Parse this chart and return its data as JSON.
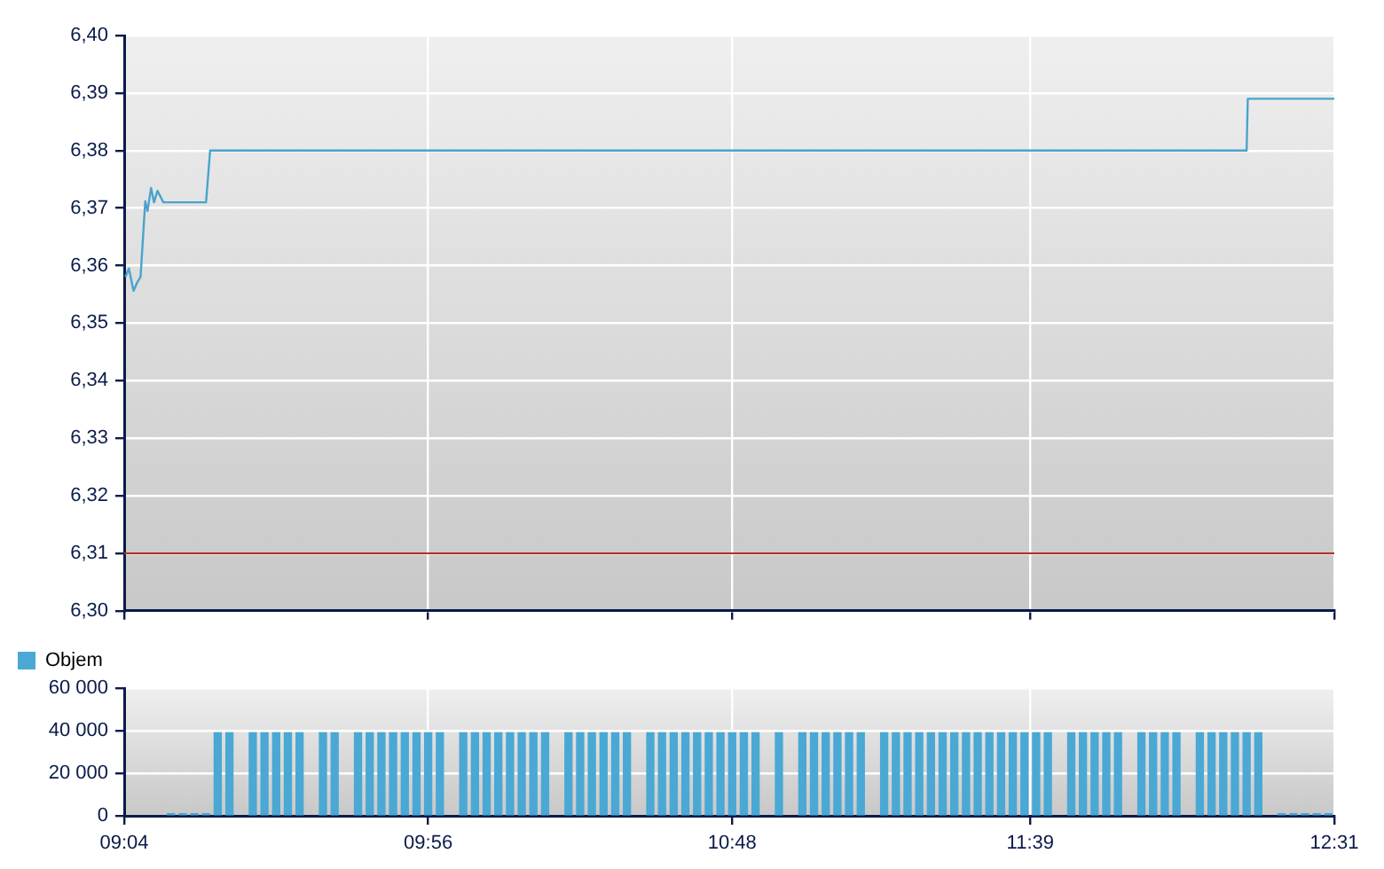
{
  "chart_data": [
    {
      "type": "line",
      "series": [
        {
          "color": "#4aa3cc",
          "x": [
            9.07,
            9.08,
            9.0933,
            9.1033,
            9.1133,
            9.1267,
            9.1333,
            9.1433,
            9.1517,
            9.1617,
            9.1783,
            9.3,
            9.3117,
            12.2667,
            12.27,
            12.5167
          ],
          "values": [
            6.358,
            6.3595,
            6.3556,
            6.357,
            6.358,
            6.3712,
            6.3695,
            6.3735,
            6.371,
            6.373,
            6.371,
            6.371,
            6.38,
            6.38,
            6.389,
            6.389
          ]
        }
      ],
      "xlim": [
        9.0667,
        12.5167
      ],
      "xticks": [
        {
          "value": 9.0667,
          "label": null
        },
        {
          "value": 9.9333,
          "label": null
        },
        {
          "value": 10.8,
          "label": null
        },
        {
          "value": 11.65,
          "label": null
        },
        {
          "value": 12.5167,
          "label": null
        }
      ],
      "ylim": [
        6.3,
        6.4
      ],
      "yticks": [
        {
          "value": 6.3,
          "label": "6,30"
        },
        {
          "value": 6.31,
          "label": "6,31"
        },
        {
          "value": 6.32,
          "label": "6,32"
        },
        {
          "value": 6.33,
          "label": "6,33"
        },
        {
          "value": 6.34,
          "label": "6,34"
        },
        {
          "value": 6.35,
          "label": "6,35"
        },
        {
          "value": 6.36,
          "label": "6,36"
        },
        {
          "value": 6.37,
          "label": "6,37"
        },
        {
          "value": 6.38,
          "label": "6,38"
        },
        {
          "value": 6.39,
          "label": "6,39"
        },
        {
          "value": 6.4,
          "label": "6,40"
        }
      ],
      "ref_lines": [
        {
          "axis": "y",
          "value": 6.31,
          "color": "#b03030"
        }
      ],
      "grid": true,
      "tick_labels": "y"
    },
    {
      "type": "bar",
      "series": [
        {
          "name": "Objem",
          "color": "#4aa8d4",
          "x": [
            9.2,
            9.2333,
            9.2667,
            9.3,
            9.3333,
            9.3667,
            9.4333,
            9.4667,
            9.5,
            9.5333,
            9.5667,
            9.6333,
            9.6667,
            9.7333,
            9.7667,
            9.8,
            9.8333,
            9.8667,
            9.9,
            9.9333,
            9.9667,
            10.0333,
            10.0667,
            10.1,
            10.1333,
            10.1667,
            10.2,
            10.2333,
            10.2667,
            10.3333,
            10.3667,
            10.4,
            10.4333,
            10.4667,
            10.5,
            10.5667,
            10.6,
            10.6333,
            10.6667,
            10.7,
            10.7333,
            10.7667,
            10.8,
            10.8333,
            10.8667,
            10.9333,
            11,
            11.0333,
            11.0667,
            11.1,
            11.1333,
            11.1667,
            11.2333,
            11.2667,
            11.3,
            11.3333,
            11.3667,
            11.4,
            11.4333,
            11.4667,
            11.5,
            11.5333,
            11.5667,
            11.6,
            11.6333,
            11.6667,
            11.7,
            11.7667,
            11.8,
            11.8333,
            11.8667,
            11.9,
            11.9667,
            12,
            12.0333,
            12.0667,
            12.1333,
            12.1667,
            12.2,
            12.2333,
            12.2667,
            12.3,
            12.3667,
            12.4,
            12.4333,
            12.4667,
            12.5
          ],
          "values": [
            1000,
            1000,
            1000,
            1000,
            39000,
            39000,
            39000,
            39000,
            39000,
            39000,
            39000,
            39000,
            39000,
            39000,
            39000,
            39000,
            39000,
            39000,
            39000,
            39000,
            39000,
            39000,
            39000,
            39000,
            39000,
            39000,
            39000,
            39000,
            39000,
            39000,
            39000,
            39000,
            39000,
            39000,
            39000,
            39000,
            39000,
            39000,
            39000,
            39000,
            39000,
            39000,
            39000,
            39000,
            39000,
            39000,
            39000,
            39000,
            39000,
            39000,
            39000,
            39000,
            39000,
            39000,
            39000,
            39000,
            39000,
            39000,
            39000,
            39000,
            39000,
            39000,
            39000,
            39000,
            39000,
            39000,
            39000,
            39000,
            39000,
            39000,
            39000,
            39000,
            39000,
            39000,
            39000,
            39000,
            39000,
            39000,
            39000,
            39000,
            39000,
            39000,
            1000,
            1000,
            1000,
            1000,
            1000
          ]
        }
      ],
      "xlim": [
        9.0667,
        12.5167
      ],
      "xticks": [
        {
          "value": 9.0667,
          "label": "09:04"
        },
        {
          "value": 9.9333,
          "label": "09:56"
        },
        {
          "value": 10.8,
          "label": "10:48"
        },
        {
          "value": 11.65,
          "label": "11:39"
        },
        {
          "value": 12.5167,
          "label": "12:31"
        }
      ],
      "ylim": [
        0,
        60000
      ],
      "yticks": [
        0,
        {
          "value": 20000,
          "label": "20 000"
        },
        {
          "value": 40000,
          "label": "40 000"
        },
        {
          "value": 60000,
          "label": "60 000"
        }
      ],
      "grid": true,
      "legend": "top left"
    }
  ]
}
